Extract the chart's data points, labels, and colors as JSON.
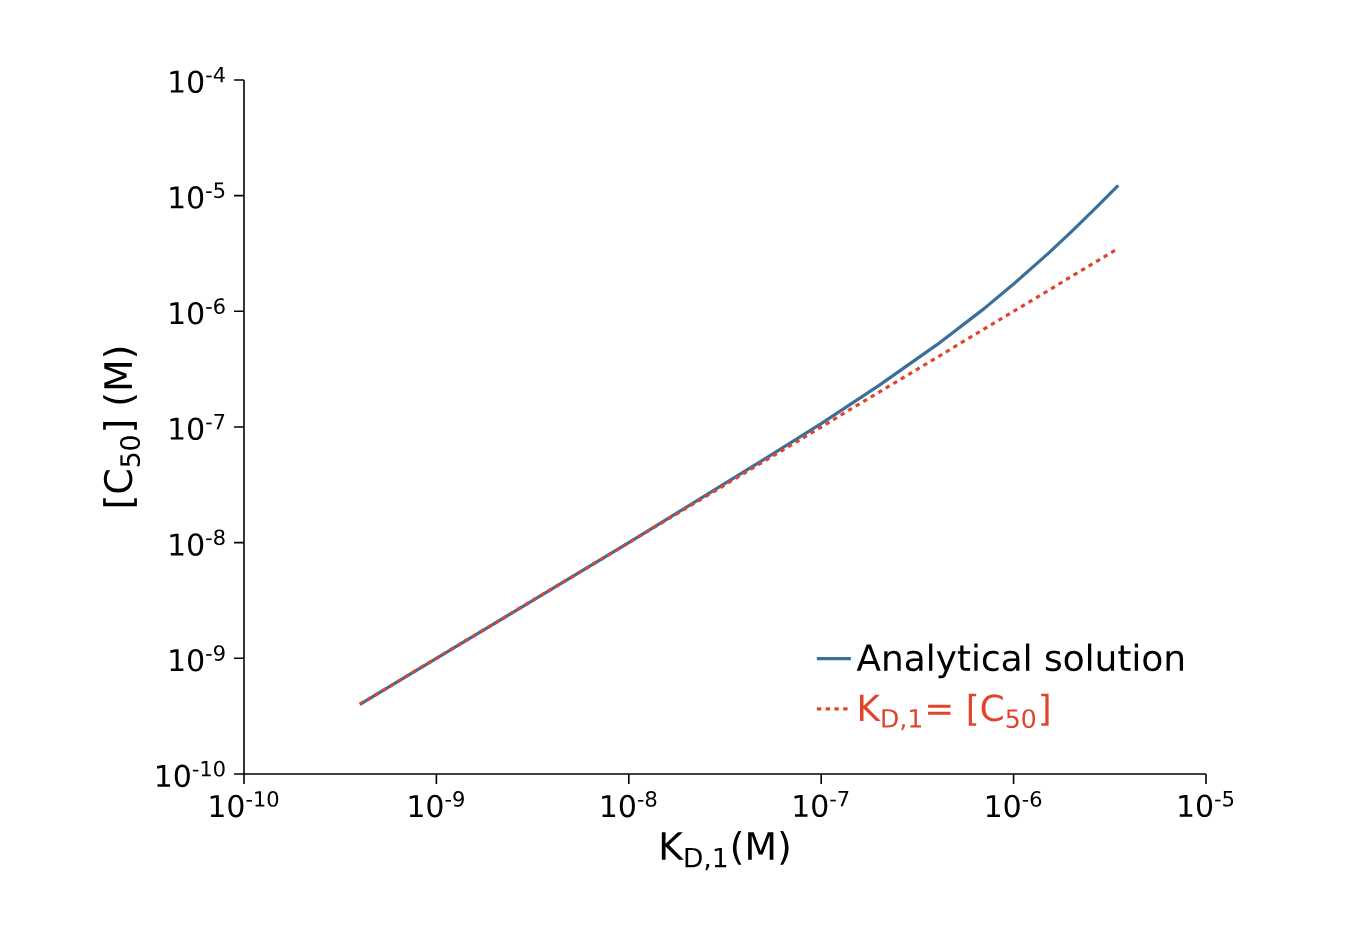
{
  "chart_data": {
    "type": "line",
    "xlabel": "K$_{D,1}$(M)",
    "ylabel": "[C$_{50}$] (M)",
    "log": "xy",
    "legend": "bottom right",
    "grid": false,
    "marker": "none",
    "xlim": [
      1e-10,
      1e-05
    ],
    "ylim": [
      1e-10,
      0.0001
    ],
    "xticks": [
      {
        "value": 1e-10,
        "label": "10$^{-10}$"
      },
      {
        "value": 1e-09,
        "label": "10$^{-9}$"
      },
      {
        "value": 1e-08,
        "label": "10$^{-8}$"
      },
      {
        "value": 1e-07,
        "label": "10$^{-7}$"
      },
      {
        "value": 1e-06,
        "label": "10$^{-6}$"
      },
      {
        "value": 1e-05,
        "label": "10$^{-5}$"
      }
    ],
    "yticks": [
      {
        "value": 1e-10,
        "label": "10$^{-10}$"
      },
      {
        "value": 1e-09,
        "label": "10$^{-9}$"
      },
      {
        "value": 1e-08,
        "label": "10$^{-8}$"
      },
      {
        "value": 1e-07,
        "label": "10$^{-7}$"
      },
      {
        "value": 1e-06,
        "label": "10$^{-6}$"
      },
      {
        "value": 1e-05,
        "label": "10$^{-5}$"
      },
      {
        "value": 0.0001,
        "label": "10$^{-4}$"
      }
    ],
    "series": [
      {
        "name": "Analytical solution",
        "color": "#3a6f9a",
        "line_style": "solid",
        "x": [
          4e-10,
          1e-09,
          1e-08,
          5e-08,
          1e-07,
          2e-07,
          4e-07,
          7e-07,
          1e-06,
          1.5e-06,
          2e-06,
          2.7e-06,
          3.5e-06
        ],
        "values": [
          4e-10,
          1e-09,
          1e-08,
          5.2e-08,
          1.07e-07,
          2.29e-07,
          5.15e-07,
          1.05e-06,
          1.72e-06,
          3.12e-06,
          4.88e-06,
          7.95e-06,
          1.23e-05
        ]
      },
      {
        "name": "K$_{D,1}$= [C$_{50}$]",
        "color": "#e0452c",
        "line_style": "dotted",
        "x": [
          4e-10,
          1e-09,
          1e-08,
          1e-07,
          1e-06,
          3.5e-06
        ],
        "values": [
          4e-10,
          1e-09,
          1e-08,
          1e-07,
          1e-06,
          3.5e-06
        ]
      }
    ]
  }
}
